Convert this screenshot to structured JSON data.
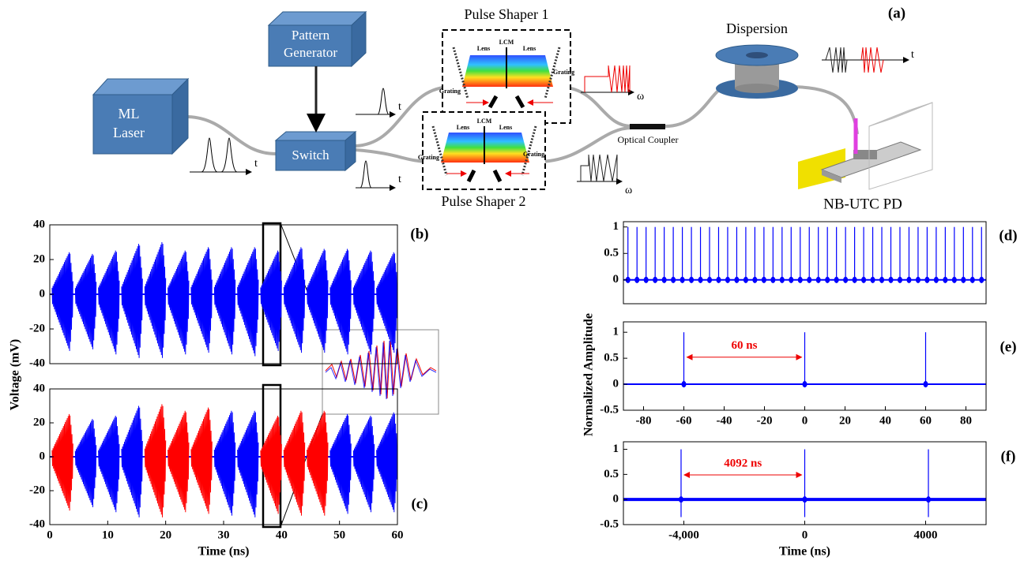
{
  "diagram": {
    "label": "(a)",
    "laser": [
      "ML",
      "Laser"
    ],
    "pattern_generator": [
      "Pattern",
      "Generator"
    ],
    "switch": "Switch",
    "shaper1": {
      "title": "Pulse Shaper 1",
      "lens_left": "Lens",
      "lcm": "LCM",
      "lens_right": "Lens",
      "grating_left": "Grating",
      "grating_right": "Grating"
    },
    "shaper2": {
      "title": "Pulse Shaper 2",
      "lens_left": "Lens",
      "lcm": "LCM",
      "lens_right": "Lens",
      "grating_left": "Grating",
      "grating_right": "Grating"
    },
    "dispersion": "Dispersion",
    "coupler": "Optical Coupler",
    "detector": "NB-UTC PD",
    "axis_labels": [
      "t",
      "t",
      "t",
      "ω",
      "ω",
      "t"
    ]
  },
  "chart_data": [
    {
      "type": "waveform",
      "panel_label": "(b)",
      "ylabel": "Voltage (mV)",
      "xlim": [
        0,
        60
      ],
      "ylim": [
        -40,
        40
      ],
      "yticks": [
        -40,
        -20,
        0,
        20,
        40
      ],
      "x": [
        2.3,
        6.3,
        10.3,
        14.3,
        18.3,
        22.3,
        26.3,
        30.3,
        34.3,
        38.3,
        42.3,
        46.3,
        50.3,
        54.3,
        58.3
      ],
      "series": [
        {
          "color": "#0000ff",
          "values": [
            25,
            24,
            26,
            30,
            31,
            26,
            28,
            28,
            28,
            26,
            28,
            27,
            27,
            26,
            25
          ],
          "lows": [
            -33,
            -32,
            -35,
            -37,
            -37,
            -35,
            -34,
            -35,
            -36,
            -33,
            -34,
            -34,
            -35,
            -35,
            -34
          ]
        }
      ]
    },
    {
      "type": "waveform",
      "panel_label": "(c)",
      "xlabel": "Time (ns)",
      "xlim": [
        0,
        60
      ],
      "ylim": [
        -40,
        40
      ],
      "yticks": [
        -40,
        -20,
        0,
        20,
        40
      ],
      "xticks": [
        0,
        10,
        20,
        30,
        40,
        50,
        60
      ],
      "x": [
        2.3,
        6.3,
        10.3,
        14.3,
        18.3,
        22.3,
        26.3,
        30.3,
        34.3,
        38.3,
        42.3,
        46.3,
        50.3,
        54.3,
        58.3
      ],
      "series": [
        {
          "color": "#0000ff",
          "colors": [
            "#ff0000",
            "#0000ff",
            "#0000ff",
            "#0000ff",
            "#ff0000",
            "#ff0000",
            "#ff0000",
            "#0000ff",
            "#0000ff",
            "#ff0000",
            "#ff0000",
            "#ff0000",
            "#0000ff",
            "#0000ff",
            "#0000ff"
          ],
          "values": [
            26,
            23,
            25,
            31,
            32,
            28,
            30,
            28,
            28,
            25,
            28,
            28,
            26,
            25,
            27
          ],
          "lows": [
            -32,
            -30,
            -33,
            -36,
            -36,
            -33,
            -34,
            -35,
            -36,
            -34,
            -35,
            -35,
            -34,
            -33,
            -33
          ]
        }
      ]
    },
    {
      "type": "impulse",
      "panel_label": "(d)",
      "ylabel": "Normalized Amplitude",
      "ylim": [
        -0.45,
        1.1
      ],
      "yticks": [
        0,
        0.5,
        1
      ],
      "series": [
        {
          "color": "#0000ff",
          "values": [
            1,
            1,
            1,
            1,
            1,
            1,
            1,
            1,
            1,
            1,
            1,
            1,
            1,
            1,
            1,
            1,
            1,
            1,
            1,
            1,
            1,
            1,
            1,
            1,
            1,
            1,
            1,
            1,
            1,
            1,
            1,
            1,
            1,
            1,
            1,
            1,
            1,
            1,
            1,
            1
          ]
        }
      ]
    },
    {
      "type": "impulse",
      "panel_label": "(e)",
      "annotation": "60 ns",
      "xlim": [
        -90,
        90
      ],
      "ylim": [
        -0.5,
        1.2
      ],
      "xticks": [
        -80,
        -60,
        -40,
        -20,
        0,
        20,
        40,
        60,
        80
      ],
      "yticks": [
        -0.5,
        0,
        0.5,
        1
      ],
      "x": [
        -60,
        0,
        60
      ],
      "series": [
        {
          "color": "#0000ff",
          "values": [
            1,
            1,
            1
          ]
        }
      ]
    },
    {
      "type": "impulse",
      "panel_label": "(f)",
      "annotation": "4092 ns",
      "xlabel": "Time (ns)",
      "xlim": [
        -6000,
        6000
      ],
      "ylim": [
        -0.5,
        1.15
      ],
      "xticks": [
        {
          "value": -4000,
          "label": "-4,000"
        },
        0,
        4000
      ],
      "yticks": [
        -0.5,
        0,
        0.5,
        1
      ],
      "x": [
        -4092,
        0,
        4092
      ],
      "series": [
        {
          "color": "#0000ff",
          "values": [
            1,
            1,
            1
          ],
          "lows": [
            -0.35,
            -0.35,
            -0.35
          ]
        }
      ]
    }
  ]
}
